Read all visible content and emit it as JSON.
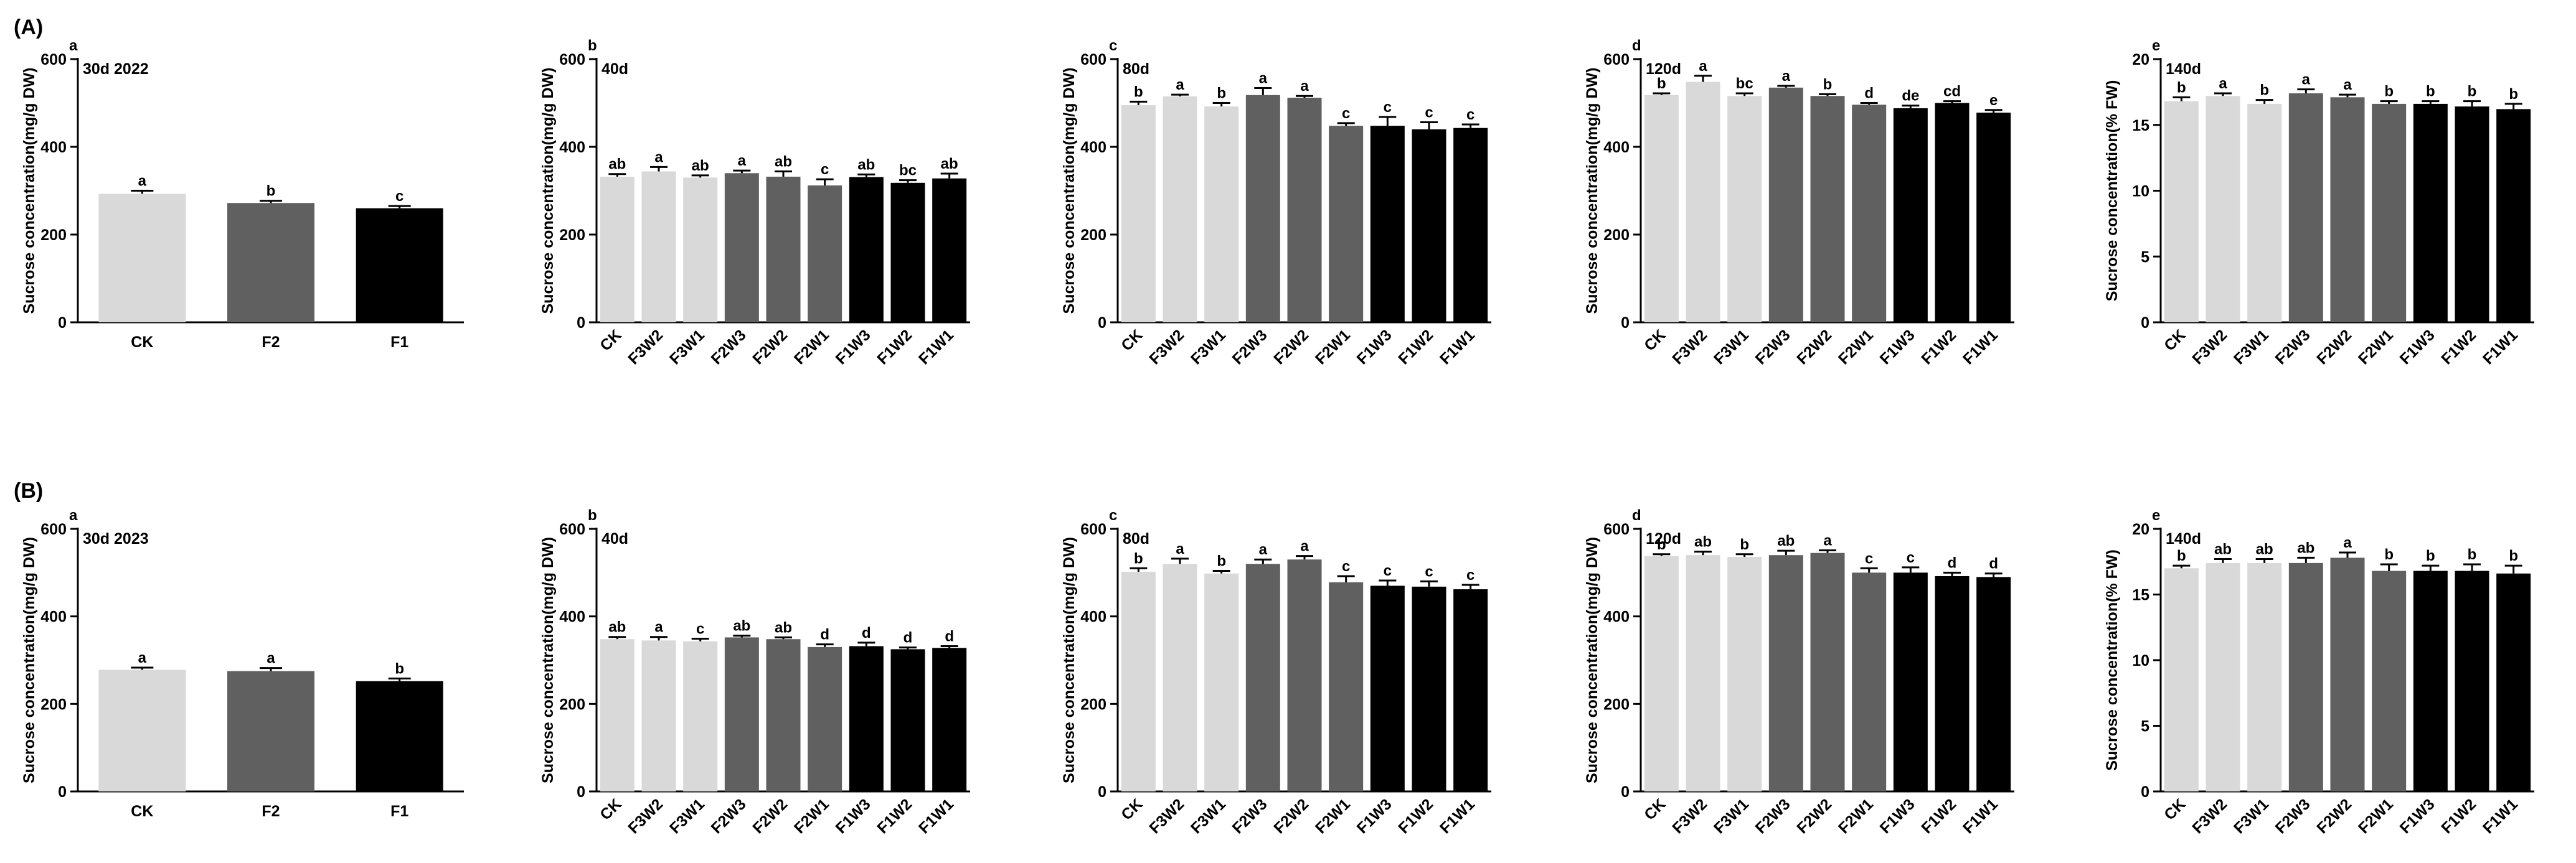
{
  "figure": {
    "row_labels": [
      "(A)",
      "(B)"
    ],
    "colors": {
      "CK": "#d9d9d9",
      "F3": "#d9d9d9",
      "F2": "#606060",
      "F1": "#000000",
      "axis": "#000000",
      "text": "#000000"
    }
  },
  "chart_data": [
    {
      "type": "bar",
      "row": "A",
      "panel_letter": "a",
      "title": "30d 2022",
      "ylabel": "Sucrose  concentration(mg/g DW)",
      "xlabel": "",
      "categories": [
        "CK",
        "F2",
        "F1"
      ],
      "values": [
        293,
        272,
        260
      ],
      "errors": [
        7,
        5,
        5
      ],
      "letters": [
        "a",
        "b",
        "c"
      ],
      "groups": [
        "CK",
        "F2",
        "F1"
      ],
      "ylim": [
        0,
        600
      ],
      "yticks": [
        0,
        200,
        400,
        600
      ],
      "xtick_rotation": 0,
      "grid": false
    },
    {
      "type": "bar",
      "row": "A",
      "panel_letter": "b",
      "title": "40d",
      "ylabel": "Sucrose  concentration(mg/g DW)",
      "xlabel": "",
      "categories": [
        "CK",
        "F3W2",
        "F3W1",
        "F2W3",
        "F2W2",
        "F2W1",
        "F1W3",
        "F1W2",
        "F1W1"
      ],
      "values": [
        332,
        344,
        330,
        340,
        332,
        312,
        331,
        318,
        328
      ],
      "errors": [
        6,
        10,
        5,
        6,
        12,
        14,
        6,
        6,
        11
      ],
      "letters": [
        "ab",
        "a",
        "ab",
        "a",
        "ab",
        "c",
        "ab",
        "bc",
        "ab"
      ],
      "groups": [
        "CK",
        "F3",
        "F3",
        "F2",
        "F2",
        "F2",
        "F1",
        "F1",
        "F1"
      ],
      "ylim": [
        0,
        600
      ],
      "yticks": [
        0,
        200,
        400,
        600
      ],
      "xtick_rotation": -45,
      "grid": false
    },
    {
      "type": "bar",
      "row": "A",
      "panel_letter": "c",
      "title": "80d",
      "ylabel": "Sucrose  concentration(mg/g DW)",
      "xlabel": "",
      "categories": [
        "CK",
        "F3W2",
        "F3W1",
        "F2W3",
        "F2W2",
        "F2W1",
        "F1W3",
        "F1W2",
        "F1W1"
      ],
      "values": [
        495,
        515,
        492,
        518,
        512,
        448,
        448,
        440,
        443
      ],
      "errors": [
        8,
        4,
        8,
        16,
        4,
        6,
        20,
        16,
        8
      ],
      "letters": [
        "b",
        "a",
        "b",
        "a",
        "a",
        "c",
        "c",
        "c",
        "c"
      ],
      "groups": [
        "CK",
        "F3",
        "F3",
        "F2",
        "F2",
        "F2",
        "F1",
        "F1",
        "F1"
      ],
      "ylim": [
        0,
        600
      ],
      "yticks": [
        0,
        200,
        400,
        600
      ],
      "xtick_rotation": -45,
      "grid": false
    },
    {
      "type": "bar",
      "row": "A",
      "panel_letter": "d",
      "title": "120d",
      "ylabel": "Sucrose  concentration(mg/g DW)",
      "xlabel": "",
      "categories": [
        "CK",
        "F3W2",
        "F3W1",
        "F2W3",
        "F2W2",
        "F2W1",
        "F1W3",
        "F1W2",
        "F1W1"
      ],
      "values": [
        518,
        548,
        516,
        535,
        516,
        496,
        488,
        500,
        478
      ],
      "errors": [
        4,
        14,
        6,
        4,
        4,
        4,
        6,
        4,
        6
      ],
      "letters": [
        "b",
        "a",
        "bc",
        "a",
        "b",
        "d",
        "de",
        "cd",
        "e"
      ],
      "groups": [
        "CK",
        "F3",
        "F3",
        "F2",
        "F2",
        "F2",
        "F1",
        "F1",
        "F1"
      ],
      "ylim": [
        0,
        600
      ],
      "yticks": [
        0,
        200,
        400,
        600
      ],
      "xtick_rotation": -45,
      "grid": false
    },
    {
      "type": "bar",
      "row": "A",
      "panel_letter": "e",
      "title": "140d",
      "ylabel": "Sucrose  concentration(% FW)",
      "xlabel": "",
      "categories": [
        "CK",
        "F3W2",
        "F3W1",
        "F2W3",
        "F2W2",
        "F2W1",
        "F1W3",
        "F1W2",
        "F1W1"
      ],
      "values": [
        16.8,
        17.2,
        16.6,
        17.4,
        17.1,
        16.6,
        16.6,
        16.4,
        16.2
      ],
      "errors": [
        0.3,
        0.2,
        0.3,
        0.3,
        0.2,
        0.2,
        0.2,
        0.4,
        0.4
      ],
      "letters": [
        "b",
        "a",
        "b",
        "a",
        "a",
        "b",
        "b",
        "b",
        "b"
      ],
      "groups": [
        "CK",
        "F3",
        "F3",
        "F2",
        "F2",
        "F2",
        "F1",
        "F1",
        "F1"
      ],
      "ylim": [
        0,
        20
      ],
      "yticks": [
        0,
        5,
        10,
        15,
        20
      ],
      "xtick_rotation": -45,
      "grid": false
    },
    {
      "type": "bar",
      "row": "B",
      "panel_letter": "a",
      "title": "30d 2023",
      "ylabel": "Sucrose  concentration(mg/g DW)",
      "xlabel": "",
      "categories": [
        "CK",
        "F2",
        "F1"
      ],
      "values": [
        278,
        275,
        252
      ],
      "errors": [
        5,
        7,
        6
      ],
      "letters": [
        "a",
        "a",
        "b"
      ],
      "groups": [
        "CK",
        "F2",
        "F1"
      ],
      "ylim": [
        0,
        600
      ],
      "yticks": [
        0,
        200,
        400,
        600
      ],
      "xtick_rotation": 0,
      "grid": false
    },
    {
      "type": "bar",
      "row": "B",
      "panel_letter": "b",
      "title": "40d",
      "ylabel": "Sucrose  concentration(mg/g DW)",
      "xlabel": "",
      "categories": [
        "CK",
        "F3W2",
        "F3W1",
        "F2W3",
        "F2W2",
        "F2W1",
        "F1W3",
        "F1W2",
        "F1W1"
      ],
      "values": [
        348,
        345,
        343,
        352,
        348,
        330,
        332,
        325,
        328
      ],
      "errors": [
        5,
        8,
        6,
        4,
        4,
        6,
        8,
        4,
        4
      ],
      "letters": [
        "ab",
        "a",
        "c",
        "ab",
        "ab",
        "d",
        "d",
        "d",
        "d"
      ],
      "groups": [
        "CK",
        "F3",
        "F3",
        "F2",
        "F2",
        "F2",
        "F1",
        "F1",
        "F1"
      ],
      "ylim": [
        0,
        600
      ],
      "yticks": [
        0,
        200,
        400,
        600
      ],
      "xtick_rotation": -45,
      "grid": false
    },
    {
      "type": "bar",
      "row": "B",
      "panel_letter": "c",
      "title": "80d",
      "ylabel": "Sucrose  concentration(mg/g DW)",
      "xlabel": "",
      "categories": [
        "CK",
        "F3W2",
        "F3W1",
        "F2W3",
        "F2W2",
        "F2W1",
        "F1W3",
        "F1W2",
        "F1W1"
      ],
      "values": [
        502,
        520,
        498,
        520,
        530,
        478,
        470,
        468,
        462
      ],
      "errors": [
        8,
        12,
        6,
        10,
        8,
        14,
        12,
        12,
        10
      ],
      "letters": [
        "b",
        "a",
        "b",
        "a",
        "a",
        "c",
        "c",
        "c",
        "c"
      ],
      "groups": [
        "CK",
        "F3",
        "F3",
        "F2",
        "F2",
        "F2",
        "F1",
        "F1",
        "F1"
      ],
      "ylim": [
        0,
        600
      ],
      "yticks": [
        0,
        200,
        400,
        600
      ],
      "xtick_rotation": -45,
      "grid": false
    },
    {
      "type": "bar",
      "row": "B",
      "panel_letter": "d",
      "title": "120d",
      "ylabel": "Sucrose  concentration(mg/g DW)",
      "xlabel": "",
      "categories": [
        "CK",
        "F3W2",
        "F3W1",
        "F2W3",
        "F2W2",
        "F2W1",
        "F1W3",
        "F1W2",
        "F1W1"
      ],
      "values": [
        538,
        540,
        536,
        540,
        545,
        500,
        500,
        492,
        490
      ],
      "errors": [
        4,
        8,
        6,
        10,
        6,
        10,
        12,
        8,
        8
      ],
      "letters": [
        "b",
        "ab",
        "b",
        "ab",
        "a",
        "c",
        "c",
        "d",
        "d"
      ],
      "groups": [
        "CK",
        "F3",
        "F3",
        "F2",
        "F2",
        "F2",
        "F1",
        "F1",
        "F1"
      ],
      "ylim": [
        0,
        600
      ],
      "yticks": [
        0,
        200,
        400,
        600
      ],
      "xtick_rotation": -45,
      "grid": false
    },
    {
      "type": "bar",
      "row": "B",
      "panel_letter": "e",
      "title": "140d",
      "ylabel": "Sucrose  concentration(% FW)",
      "xlabel": "",
      "categories": [
        "CK",
        "F3W2",
        "F3W1",
        "F2W3",
        "F2W2",
        "F2W1",
        "F1W3",
        "F1W2",
        "F1W1"
      ],
      "values": [
        17.0,
        17.4,
        17.4,
        17.4,
        17.8,
        16.8,
        16.8,
        16.8,
        16.6
      ],
      "errors": [
        0.2,
        0.3,
        0.3,
        0.4,
        0.4,
        0.5,
        0.4,
        0.5,
        0.6
      ],
      "letters": [
        "b",
        "ab",
        "ab",
        "ab",
        "a",
        "b",
        "b",
        "b",
        "b"
      ],
      "groups": [
        "CK",
        "F3",
        "F3",
        "F2",
        "F2",
        "F2",
        "F1",
        "F1",
        "F1"
      ],
      "ylim": [
        0,
        20
      ],
      "yticks": [
        0,
        5,
        10,
        15,
        20
      ],
      "xtick_rotation": -45,
      "grid": false
    }
  ]
}
